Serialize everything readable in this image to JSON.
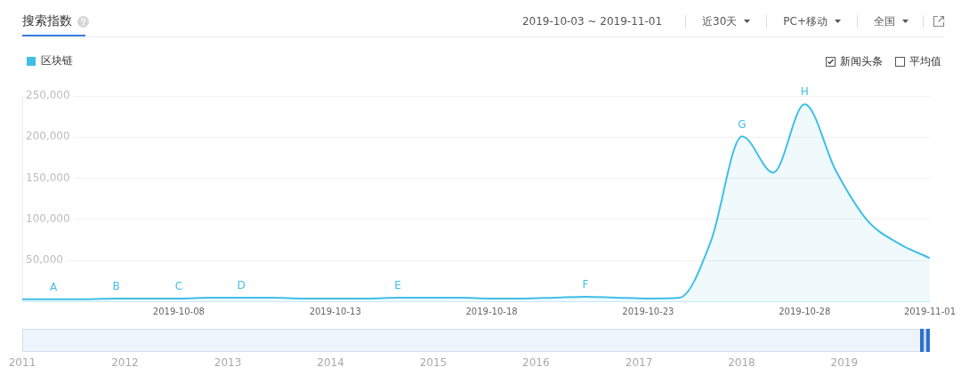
{
  "chart_data": {
    "type": "area",
    "title": "搜索指数",
    "subtitle": "2019-10-03 ~ 2019-11-01",
    "x": [
      "2019-10-03",
      "2019-10-04",
      "2019-10-05",
      "2019-10-06",
      "2019-10-07",
      "2019-10-08",
      "2019-10-09",
      "2019-10-10",
      "2019-10-11",
      "2019-10-12",
      "2019-10-13",
      "2019-10-14",
      "2019-10-15",
      "2019-10-16",
      "2019-10-17",
      "2019-10-18",
      "2019-10-19",
      "2019-10-20",
      "2019-10-21",
      "2019-10-22",
      "2019-10-23",
      "2019-10-24",
      "2019-10-25",
      "2019-10-26",
      "2019-10-27",
      "2019-10-28",
      "2019-10-29",
      "2019-10-30",
      "2019-10-31",
      "2019-11-01"
    ],
    "series": [
      {
        "name": "区块链",
        "color": "#3fbfe6",
        "values": [
          3000,
          3000,
          3000,
          4000,
          4000,
          4000,
          5000,
          5000,
          5000,
          4000,
          4000,
          4000,
          5000,
          5000,
          5000,
          4000,
          4000,
          5000,
          6000,
          5000,
          4000,
          5000,
          73000,
          201000,
          157000,
          240000,
          159000,
          99000,
          71000,
          53000
        ]
      }
    ],
    "xlim": [
      "2019-10-03",
      "2019-11-01"
    ],
    "xticks": [
      "2019-10-08",
      "2019-10-13",
      "2019-10-18",
      "2019-10-23",
      "2019-10-28",
      "2019-11-01"
    ],
    "x2lim": [
      "2011-01-01",
      "2019-11-01"
    ],
    "x2ticks": [
      {
        "value": "2011-01-01",
        "label": "2011"
      },
      {
        "value": "2012-01-01",
        "label": "2012"
      },
      {
        "value": "2013-01-01",
        "label": "2013"
      },
      {
        "value": "2014-01-01",
        "label": "2014"
      },
      {
        "value": "2015-01-01",
        "label": "2015"
      },
      {
        "value": "2016-01-01",
        "label": "2016"
      },
      {
        "value": "2017-01-01",
        "label": "2017"
      },
      {
        "value": "2018-01-01",
        "label": "2018"
      },
      {
        "value": "2019-01-01",
        "label": "2019"
      }
    ],
    "ylim": [
      0,
      250000
    ],
    "yticks": [
      {
        "value": 50000,
        "label": "50,000"
      },
      {
        "value": 100000,
        "label": "100,000"
      },
      {
        "value": 150000,
        "label": "150,000"
      },
      {
        "value": 200000,
        "label": "200,000"
      },
      {
        "value": 250000,
        "label": "250,000"
      }
    ],
    "grid": "y",
    "legend": "top left",
    "annotations": [
      "近30天",
      "PC+移动",
      "全国",
      "新闻头条",
      "平均值",
      {
        "text": "A",
        "x": "2019-10-04",
        "y": 3000
      },
      {
        "text": "B",
        "x": "2019-10-06",
        "y": 4000
      },
      {
        "text": "C",
        "x": "2019-10-08",
        "y": 4000
      },
      {
        "text": "D",
        "x": "2019-10-10",
        "y": 5000
      },
      {
        "text": "E",
        "x": "2019-10-15",
        "y": 5000
      },
      {
        "text": "F",
        "x": "2019-10-21",
        "y": 6000
      },
      {
        "text": "G",
        "x": "2019-10-26",
        "y": 201000
      },
      {
        "text": "H",
        "x": "2019-10-28",
        "y": 240000
      }
    ]
  }
}
